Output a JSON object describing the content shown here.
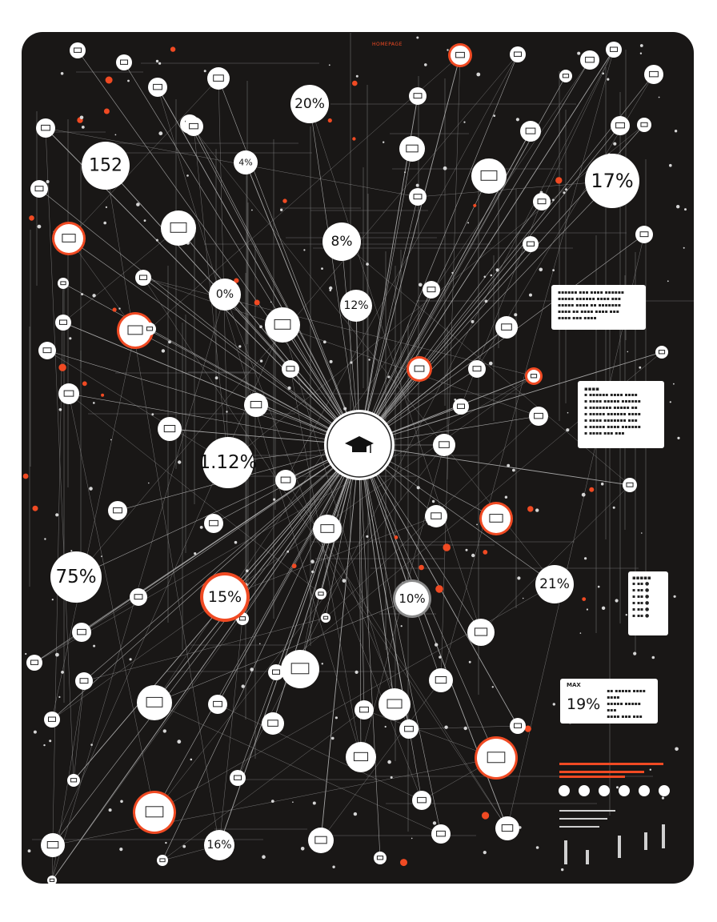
{
  "colors": {
    "panel": "#191716",
    "line": "#bdbdbd",
    "node_fill": "#ffffff",
    "accent": "#f04a23"
  },
  "hub": {
    "icon": "graduation-cap-icon"
  },
  "stats": [
    "152",
    "20%",
    "17%",
    "4%",
    "8%",
    "0%",
    "12%",
    "1.12%",
    "75%",
    "15%",
    "10%",
    "21%",
    "16%"
  ],
  "max_card": {
    "label": "MAX",
    "value": "19%"
  },
  "header_label": "HOMEPAGE"
}
